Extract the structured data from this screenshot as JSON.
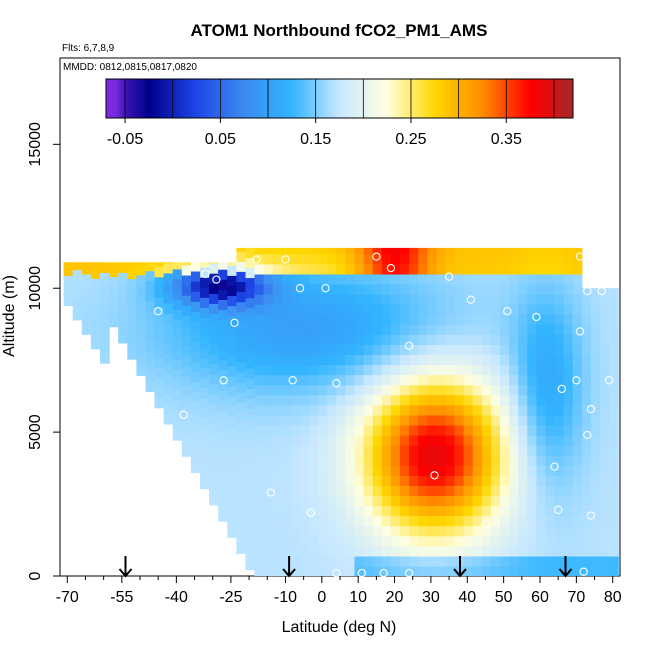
{
  "chart_data": {
    "type": "heatmap",
    "title": "ATOM1 Northbound fCO2_PM1_AMS",
    "subtitle_lines": [
      "Flts: 6,7,8,9",
      "MMDD: 0812,0815,0817,0820"
    ],
    "xlabel": "Latitude (deg N)",
    "ylabel": "Altitude (m)",
    "xlim": [
      -72,
      82
    ],
    "ylim": [
      0,
      18000
    ],
    "x_ticks": [
      -70,
      -55,
      -40,
      -25,
      -10,
      0,
      10,
      20,
      30,
      40,
      50,
      60,
      70,
      80
    ],
    "x_minor_ticks": [
      -65,
      -60,
      -50,
      -45,
      -35,
      -30,
      -20,
      -15,
      -5,
      5,
      15,
      25,
      35,
      45,
      55,
      65,
      75
    ],
    "y_ticks": [
      0,
      5000,
      10000,
      15000
    ],
    "colorbar": {
      "range": [
        -0.07,
        0.42
      ],
      "ticks": [
        -0.05,
        0.05,
        0.15,
        0.25,
        0.35
      ],
      "tick_labels": [
        "-0.05",
        "0.05",
        "0.15",
        "0.25",
        "0.35"
      ],
      "divisions": [
        -0.07,
        -0.05,
        0,
        0.05,
        0.1,
        0.15,
        0.2,
        0.25,
        0.3,
        0.35,
        0.4,
        0.42
      ],
      "colors": [
        "#7a2be0",
        "#00008b",
        "#1e46e6",
        "#3c8cf0",
        "#32b4ff",
        "#c8e8ff",
        "#ffffe0",
        "#ffd700",
        "#ff8c00",
        "#ff0000",
        "#b22222"
      ]
    },
    "arrows_latitude": [
      -54,
      -9,
      38,
      67
    ],
    "flight_points": [
      {
        "x": -18,
        "y": 11000
      },
      {
        "x": -10,
        "y": 11000
      },
      {
        "x": 15,
        "y": 11100
      },
      {
        "x": 71,
        "y": 11100
      },
      {
        "x": 19,
        "y": 10700
      },
      {
        "x": -32,
        "y": 10500
      },
      {
        "x": -29,
        "y": 10300
      },
      {
        "x": 35,
        "y": 10400
      },
      {
        "x": -6,
        "y": 10000
      },
      {
        "x": 1,
        "y": 10000
      },
      {
        "x": 73,
        "y": 9900
      },
      {
        "x": 77,
        "y": 9900
      },
      {
        "x": 41,
        "y": 9600
      },
      {
        "x": -45,
        "y": 9200
      },
      {
        "x": 51,
        "y": 9200
      },
      {
        "x": 59,
        "y": 9000
      },
      {
        "x": -24,
        "y": 8800
      },
      {
        "x": 71,
        "y": 8500
      },
      {
        "x": 24,
        "y": 8000
      },
      {
        "x": -27,
        "y": 6800
      },
      {
        "x": -8,
        "y": 6800
      },
      {
        "x": 4,
        "y": 6700
      },
      {
        "x": 70,
        "y": 6800
      },
      {
        "x": 79,
        "y": 6800
      },
      {
        "x": 66,
        "y": 6500
      },
      {
        "x": -38,
        "y": 5600
      },
      {
        "x": 74,
        "y": 5800
      },
      {
        "x": 73,
        "y": 4900
      },
      {
        "x": 64,
        "y": 3800
      },
      {
        "x": 31,
        "y": 3500
      },
      {
        "x": -14,
        "y": 2900
      },
      {
        "x": -3,
        "y": 2200
      },
      {
        "x": 65,
        "y": 2300
      },
      {
        "x": 74,
        "y": 2100
      },
      {
        "x": 45,
        "y": 1800
      },
      {
        "x": 4,
        "y": 100
      },
      {
        "x": 11,
        "y": 100
      },
      {
        "x": 17,
        "y": 100
      },
      {
        "x": 24,
        "y": 100
      },
      {
        "x": 72,
        "y": 150
      }
    ]
  }
}
